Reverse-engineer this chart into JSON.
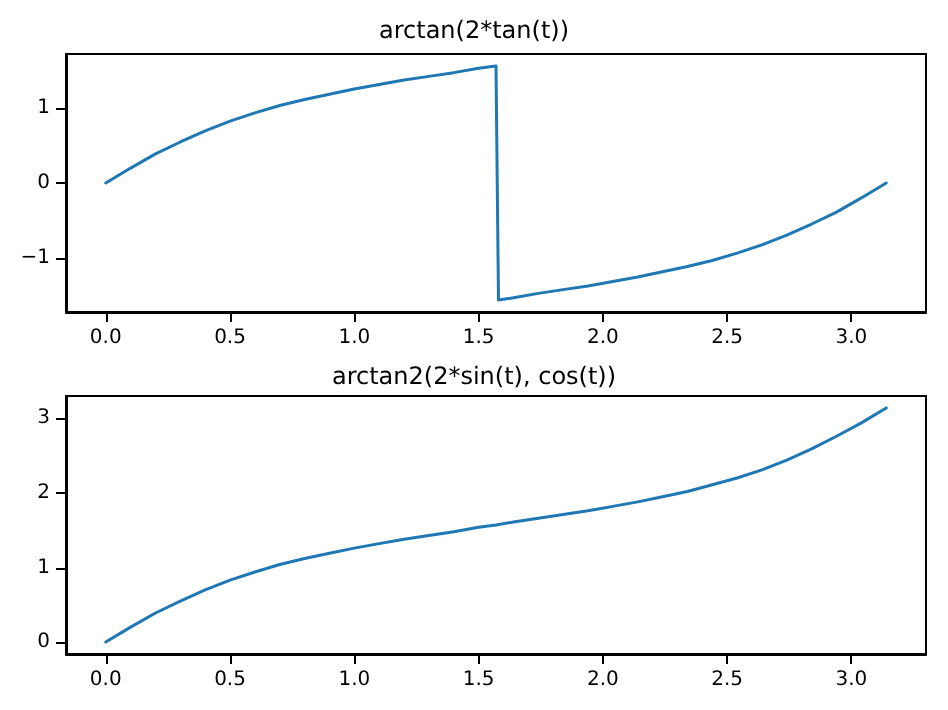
{
  "chart_data": [
    {
      "type": "line",
      "title": "arctan(2*tan(t))",
      "x": [
        0,
        0.1,
        0.2,
        0.3,
        0.4,
        0.5,
        0.6,
        0.7,
        0.8,
        0.9,
        1.0,
        1.1,
        1.2,
        1.3,
        1.4,
        1.5,
        1.57,
        1.58,
        1.64,
        1.74,
        1.84,
        1.94,
        2.04,
        2.14,
        2.24,
        2.34,
        2.44,
        2.54,
        2.64,
        2.74,
        2.84,
        2.94,
        3.04,
        3.14
      ],
      "series": [
        {
          "color": "#1f77b4",
          "values": [
            0,
            0.2,
            0.39,
            0.55,
            0.7,
            0.83,
            0.94,
            1.04,
            1.12,
            1.19,
            1.26,
            1.32,
            1.38,
            1.43,
            1.48,
            1.54,
            1.57,
            -1.57,
            -1.54,
            -1.48,
            -1.43,
            -1.38,
            -1.32,
            -1.26,
            -1.19,
            -1.12,
            -1.04,
            -0.94,
            -0.83,
            -0.7,
            -0.55,
            -0.39,
            -0.2,
            0
          ]
        }
      ],
      "xlim": [
        -0.16,
        3.3
      ],
      "xticks": [
        {
          "value": 0,
          "label": "0.0"
        },
        {
          "value": 0.5,
          "label": "0.5"
        },
        {
          "value": 1,
          "label": "1.0"
        },
        {
          "value": 1.5,
          "label": "1.5"
        },
        {
          "value": 2,
          "label": "2.0"
        },
        {
          "value": 2.5,
          "label": "2.5"
        },
        {
          "value": 3,
          "label": "3.0"
        }
      ],
      "ylim": [
        -1.73,
        1.73
      ],
      "yticks": [
        {
          "value": -1,
          "label": "−1"
        },
        0,
        1
      ],
      "grid": false,
      "marker": "none",
      "line_style": "solid"
    },
    {
      "type": "line",
      "title": "arctan2(2*sin(t), cos(t))",
      "x": [
        0,
        0.1,
        0.2,
        0.3,
        0.4,
        0.5,
        0.6,
        0.7,
        0.8,
        0.9,
        1.0,
        1.1,
        1.2,
        1.3,
        1.4,
        1.5,
        1.57,
        1.64,
        1.74,
        1.84,
        1.94,
        2.04,
        2.14,
        2.24,
        2.34,
        2.44,
        2.54,
        2.64,
        2.74,
        2.84,
        2.94,
        3.04,
        3.14
      ],
      "series": [
        {
          "color": "#1f77b4",
          "values": [
            0,
            0.2,
            0.39,
            0.55,
            0.7,
            0.83,
            0.94,
            1.04,
            1.12,
            1.19,
            1.26,
            1.32,
            1.38,
            1.43,
            1.48,
            1.54,
            1.57,
            1.61,
            1.66,
            1.71,
            1.76,
            1.82,
            1.88,
            1.95,
            2.02,
            2.11,
            2.2,
            2.31,
            2.44,
            2.59,
            2.76,
            2.94,
            3.14
          ]
        }
      ],
      "xlim": [
        -0.16,
        3.3
      ],
      "xticks": [
        {
          "value": 0,
          "label": "0.0"
        },
        {
          "value": 0.5,
          "label": "0.5"
        },
        {
          "value": 1,
          "label": "1.0"
        },
        {
          "value": 1.5,
          "label": "1.5"
        },
        {
          "value": 2,
          "label": "2.0"
        },
        {
          "value": 2.5,
          "label": "2.5"
        },
        {
          "value": 3,
          "label": "3.0"
        }
      ],
      "ylim": [
        -0.16,
        3.3
      ],
      "yticks": [
        0,
        1,
        2,
        3
      ],
      "grid": false,
      "marker": "none",
      "line_style": "solid"
    }
  ]
}
